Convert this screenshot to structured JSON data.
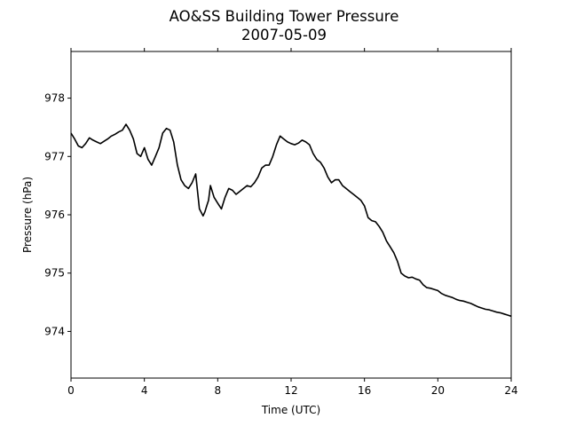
{
  "chart_data": {
    "type": "line",
    "title": "AO&SS Building Tower Pressure",
    "subtitle": "2007-05-09",
    "xlabel": "Time (UTC)",
    "ylabel": "Pressure (hPa)",
    "xlim": [
      0,
      24
    ],
    "ylim": [
      973.2,
      978.8
    ],
    "xticks": [
      0,
      4,
      8,
      12,
      16,
      20,
      24
    ],
    "yticks": [
      974,
      975,
      976,
      977,
      978
    ],
    "grid": false,
    "line_color": "#000000",
    "series": [
      {
        "x": [
          0.0,
          0.2,
          0.4,
          0.6,
          0.8,
          1.0,
          1.2,
          1.4,
          1.6,
          1.8,
          2.0,
          2.2,
          2.4,
          2.6,
          2.8,
          3.0,
          3.2,
          3.4,
          3.6,
          3.8,
          4.0,
          4.2,
          4.4,
          4.6,
          4.8,
          5.0,
          5.2,
          5.4,
          5.6,
          5.8,
          6.0,
          6.2,
          6.4,
          6.6,
          6.8,
          7.0,
          7.2,
          7.3,
          7.4,
          7.5,
          7.6,
          7.8,
          8.0,
          8.2,
          8.4,
          8.6,
          8.8,
          9.0,
          9.2,
          9.4,
          9.6,
          9.8,
          10.0,
          10.2,
          10.4,
          10.6,
          10.8,
          11.0,
          11.2,
          11.4,
          11.6,
          11.8,
          12.0,
          12.2,
          12.4,
          12.6,
          12.8,
          13.0,
          13.2,
          13.4,
          13.6,
          13.8,
          14.0,
          14.2,
          14.4,
          14.6,
          14.8,
          15.0,
          15.2,
          15.4,
          15.6,
          15.8,
          16.0,
          16.2,
          16.4,
          16.6,
          16.8,
          17.0,
          17.2,
          17.4,
          17.6,
          17.8,
          18.0,
          18.2,
          18.4,
          18.6,
          18.8,
          19.0,
          19.2,
          19.4,
          19.6,
          19.8,
          20.0,
          20.2,
          20.4,
          20.6,
          20.8,
          21.0,
          21.2,
          21.4,
          21.6,
          21.8,
          22.0,
          22.2,
          22.4,
          22.6,
          22.8,
          23.0,
          23.2,
          23.4,
          23.6,
          23.8,
          24.0
        ],
        "values": [
          977.4,
          977.3,
          977.18,
          977.15,
          977.22,
          977.32,
          977.28,
          977.25,
          977.22,
          977.26,
          977.3,
          977.35,
          977.38,
          977.42,
          977.45,
          977.55,
          977.45,
          977.3,
          977.05,
          977.0,
          977.15,
          976.95,
          976.85,
          977.0,
          977.15,
          977.4,
          977.48,
          977.45,
          977.25,
          976.85,
          976.6,
          976.5,
          976.45,
          976.55,
          976.7,
          976.1,
          975.98,
          976.05,
          976.15,
          976.25,
          976.5,
          976.3,
          976.2,
          976.1,
          976.3,
          976.45,
          976.42,
          976.35,
          976.4,
          976.45,
          976.5,
          976.48,
          976.55,
          976.65,
          976.8,
          976.85,
          976.85,
          977.0,
          977.2,
          977.35,
          977.3,
          977.25,
          977.22,
          977.2,
          977.23,
          977.28,
          977.25,
          977.2,
          977.05,
          976.95,
          976.9,
          976.8,
          976.65,
          976.55,
          976.6,
          976.6,
          976.5,
          976.45,
          976.4,
          976.35,
          976.3,
          976.25,
          976.15,
          975.95,
          975.9,
          975.88,
          975.8,
          975.7,
          975.55,
          975.45,
          975.35,
          975.2,
          975.0,
          974.95,
          974.92,
          974.93,
          974.9,
          974.88,
          974.8,
          974.75,
          974.74,
          974.72,
          974.7,
          974.65,
          974.62,
          974.6,
          974.58,
          974.55,
          974.53,
          974.52,
          974.5,
          974.48,
          974.45,
          974.42,
          974.4,
          974.38,
          974.37,
          974.35,
          974.33,
          974.32,
          974.3,
          974.28,
          974.26
        ]
      }
    ]
  }
}
